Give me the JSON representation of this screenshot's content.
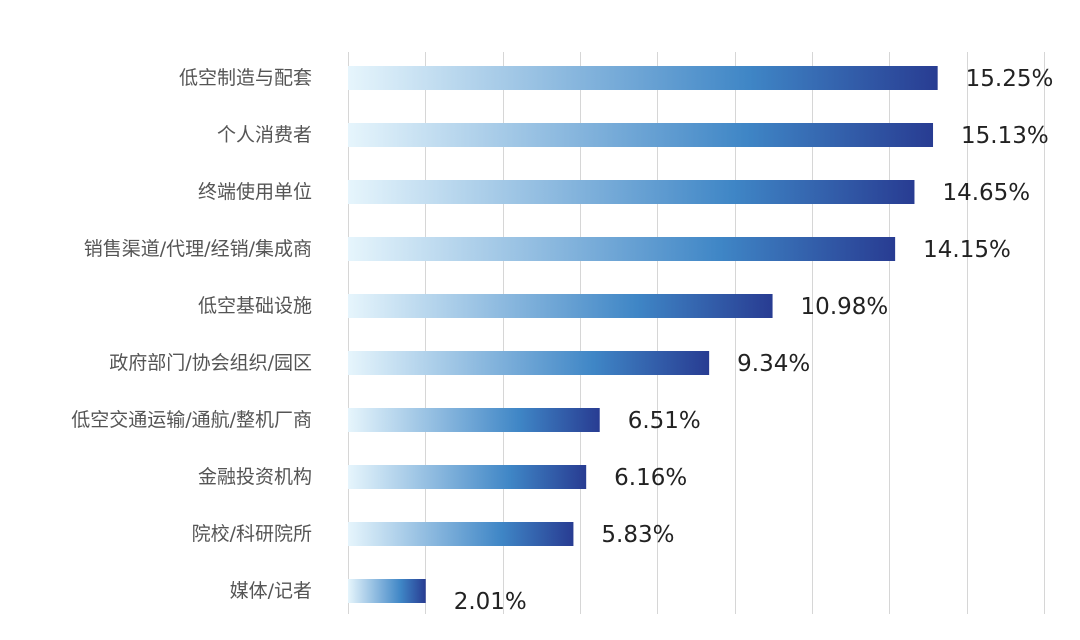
{
  "chart_data": {
    "type": "bar",
    "orientation": "horizontal",
    "categories": [
      "低空制造与配套",
      "个人消费者",
      "终端使用单位",
      "销售渠道/代理/经销/集成商",
      "低空基础设施",
      "政府部门/协会组织/园区",
      "低空交通运输/通航/整机厂商",
      "金融投资机构",
      "院校/科研院所",
      "媒体/记者"
    ],
    "values": [
      15.25,
      15.13,
      14.65,
      14.15,
      10.98,
      9.34,
      6.51,
      6.16,
      5.83,
      2.01
    ],
    "value_labels": [
      "15.25%",
      "15.13%",
      "14.65%",
      "14.15%",
      "10.98%",
      "9.34%",
      "6.51%",
      "6.16%",
      "5.83%",
      "2.01%"
    ],
    "unit": "%",
    "xlim": [
      0,
      18
    ],
    "grid": true,
    "title": "",
    "xlabel": "",
    "ylabel": "",
    "colors": {
      "gradient_start": "#e6f5fc",
      "gradient_mid": "#3f86c6",
      "gradient_end": "#283c92",
      "grid": "#d6d6d6"
    }
  }
}
